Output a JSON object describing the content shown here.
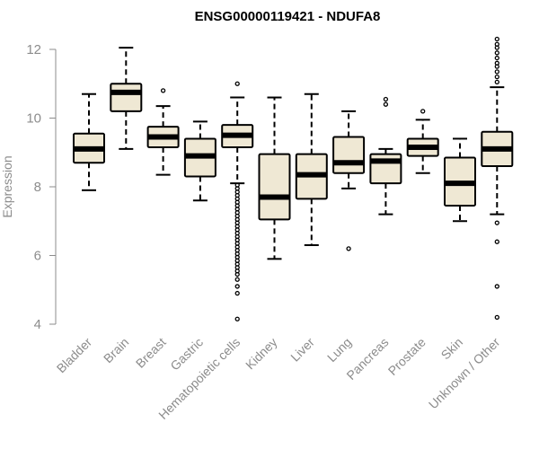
{
  "chart_data": {
    "type": "boxplot",
    "title": "ENSG00000119421 - NDUFA8",
    "xlabel": "",
    "ylabel": "Expression",
    "ylim": [
      4,
      12.4
    ],
    "yticks": [
      4,
      6,
      8,
      10,
      12
    ],
    "grid": false,
    "colors": {
      "box_fill": "#efe8d4",
      "box_stroke": "#000000",
      "axis": "#8c8c8c",
      "text": "#8c8c8c"
    },
    "categories": [
      "Bladder",
      "Brain",
      "Breast",
      "Gastric",
      "Hematopoietic cells",
      "Kidney",
      "Liver",
      "Lung",
      "Pancreas",
      "Prostate",
      "Skin",
      "Unknown / Other"
    ],
    "boxes": [
      {
        "name": "Bladder",
        "min": 7.9,
        "q1": 8.7,
        "median": 9.1,
        "q3": 9.55,
        "max": 10.7,
        "outliers": []
      },
      {
        "name": "Brain",
        "min": 9.1,
        "q1": 10.2,
        "median": 10.75,
        "q3": 11.0,
        "max": 12.05,
        "outliers": []
      },
      {
        "name": "Breast",
        "min": 8.35,
        "q1": 9.15,
        "median": 9.45,
        "q3": 9.75,
        "max": 10.35,
        "outliers": [
          10.8
        ]
      },
      {
        "name": "Gastric",
        "min": 7.6,
        "q1": 8.3,
        "median": 8.9,
        "q3": 9.4,
        "max": 9.9,
        "outliers": []
      },
      {
        "name": "Hematopoietic cells",
        "min": 8.1,
        "q1": 9.15,
        "median": 9.5,
        "q3": 9.8,
        "max": 10.6,
        "outliers": [
          11.0,
          8.05,
          7.95,
          7.85,
          7.75,
          7.65,
          7.55,
          7.45,
          7.35,
          7.25,
          7.15,
          7.05,
          6.95,
          6.85,
          6.75,
          6.65,
          6.55,
          6.45,
          6.35,
          6.25,
          6.15,
          6.05,
          5.95,
          5.85,
          5.75,
          5.65,
          5.55,
          5.45,
          5.3,
          5.1,
          4.9,
          4.15
        ]
      },
      {
        "name": "Kidney",
        "min": 5.9,
        "q1": 7.05,
        "median": 7.7,
        "q3": 8.95,
        "max": 10.6,
        "outliers": []
      },
      {
        "name": "Liver",
        "min": 6.3,
        "q1": 7.65,
        "median": 8.35,
        "q3": 8.95,
        "max": 10.7,
        "outliers": []
      },
      {
        "name": "Lung",
        "min": 7.95,
        "q1": 8.4,
        "median": 8.7,
        "q3": 9.45,
        "max": 10.2,
        "outliers": [
          6.2
        ]
      },
      {
        "name": "Pancreas",
        "min": 7.2,
        "q1": 8.1,
        "median": 8.75,
        "q3": 8.95,
        "max": 9.1,
        "outliers": [
          10.55,
          10.4
        ]
      },
      {
        "name": "Prostate",
        "min": 8.4,
        "q1": 8.9,
        "median": 9.15,
        "q3": 9.4,
        "max": 9.95,
        "outliers": [
          10.2
        ]
      },
      {
        "name": "Skin",
        "min": 7.0,
        "q1": 7.45,
        "median": 8.1,
        "q3": 8.85,
        "max": 9.4,
        "outliers": []
      },
      {
        "name": "Unknown / Other",
        "min": 7.2,
        "q1": 8.6,
        "median": 9.1,
        "q3": 9.6,
        "max": 10.9,
        "outliers": [
          12.3,
          12.15,
          12.05,
          11.9,
          11.75,
          11.6,
          11.5,
          11.35,
          11.2,
          11.05,
          6.95,
          6.4,
          5.1,
          4.2
        ]
      }
    ]
  }
}
